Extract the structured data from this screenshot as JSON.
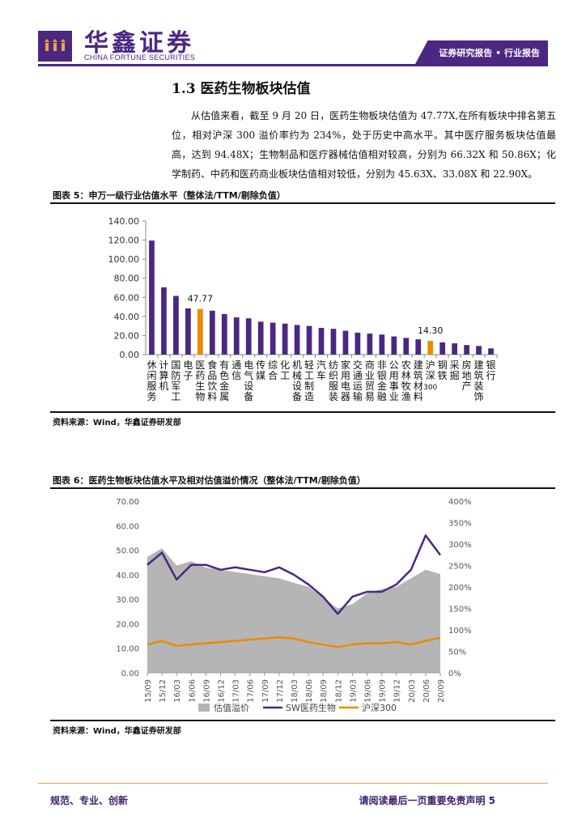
{
  "header": {
    "company_cn": "华鑫证券",
    "company_en": "CHINA FORTUNE SECURITIES",
    "report_tag": "证券研究报告 • 行业报告"
  },
  "section": {
    "title": "1.3 医药生物板块估值",
    "paragraph": "从估值来看，截至 9 月 20 日，医药生物板块估值为 47.77X,在所有板块中排名第五位，相对沪深 300 溢价率约为 234%，处于历史中高水平。其中医疗服务板块估值最高，达到 94.48X；生物制品和医疗器械估值相对较高，分别为 66.32X 和 50.86X；化学制药、中药和医药商业板块估值相对较低，分别为 45.63X、33.08X 和 22.90X。"
  },
  "figure5": {
    "title": "图表 5：申万一级行业估值水平（整体法/TTM/剔除负值）",
    "source": "资料来源：Wind，华鑫证券研发部"
  },
  "figure6": {
    "title": "图表 6：医药生物板块估值水平及相对估值溢价情况（整体法/TTM/剔除负值）",
    "source": "资料来源：Wind，华鑫证券研发部"
  },
  "footer": {
    "left": "规范、专业、创新",
    "right": "请阅读最后一页重要免责声明 5"
  },
  "colors": {
    "brand": "#4b2782",
    "highlight": "#ed8b00",
    "premium_area": "#b5b5b5"
  },
  "chart_data": [
    {
      "type": "bar",
      "categories": [
        "休闲服务",
        "计算机",
        "国防军工",
        "电子",
        "医药生物",
        "食品饮料",
        "有色金属",
        "通信",
        "电气设备",
        "传媒",
        "综合",
        "化工",
        "机械设备",
        "轻工制造",
        "汽车",
        "纺织服装",
        "家用电器",
        "交通运输",
        "商业贸易",
        "非银金融",
        "公用事业",
        "农林牧渔",
        "建筑材料",
        "沪深300",
        "钢铁",
        "采掘",
        "房地产",
        "建筑装饰",
        "银行"
      ],
      "category_lines": [
        [
          "休",
          "闲",
          "服",
          "务"
        ],
        [
          "计",
          "算",
          "机"
        ],
        [
          "国",
          "防",
          "军",
          "工"
        ],
        [
          "电",
          "子"
        ],
        [
          "医",
          "药",
          "生",
          "物"
        ],
        [
          "食",
          "品",
          "饮",
          "料"
        ],
        [
          "有",
          "色",
          "金",
          "属"
        ],
        [
          "通",
          "信"
        ],
        [
          "电",
          "气",
          "设",
          "备"
        ],
        [
          "传",
          "媒"
        ],
        [
          "综",
          "合"
        ],
        [
          "化",
          "工"
        ],
        [
          "机",
          "械",
          "设",
          "备"
        ],
        [
          "轻",
          "工",
          "制",
          "造"
        ],
        [
          "汽",
          "车"
        ],
        [
          "纺",
          "织",
          "服",
          "装"
        ],
        [
          "家",
          "用",
          "电",
          "器"
        ],
        [
          "交",
          "通",
          "运",
          "输"
        ],
        [
          "商",
          "业",
          "贸",
          "易"
        ],
        [
          "非",
          "银",
          "金",
          "融"
        ],
        [
          "公",
          "用",
          "事",
          "业"
        ],
        [
          "农",
          "林",
          "牧",
          "渔"
        ],
        [
          "建",
          "筑",
          "材",
          "料"
        ],
        [
          "沪",
          "深",
          "300"
        ],
        [
          "钢",
          "铁"
        ],
        [
          "采",
          "掘"
        ],
        [
          "房",
          "地",
          "产"
        ],
        [
          "建",
          "筑",
          "装",
          "饰"
        ],
        [
          "银",
          "行"
        ]
      ],
      "values": [
        119.5,
        70.5,
        61.5,
        48.5,
        47.77,
        46.0,
        42.5,
        39.0,
        38.0,
        34.5,
        33.5,
        32.5,
        31.0,
        30.0,
        28.0,
        27.0,
        25.0,
        23.0,
        22.0,
        21.0,
        19.0,
        17.5,
        16.0,
        14.3,
        12.8,
        11.8,
        10.0,
        9.0,
        6.5
      ],
      "highlight_indices": [
        4,
        23
      ],
      "data_labels": [
        {
          "index": 4,
          "text": "47.77"
        },
        {
          "index": 23,
          "text": "14.30"
        }
      ],
      "yticks": [
        "0.00",
        "20.00",
        "40.00",
        "60.00",
        "80.00",
        "100.00",
        "120.00",
        "140.00"
      ],
      "ylim": [
        0,
        140
      ],
      "colors": {
        "bar": "#4b2782",
        "highlight": "#ed8b00"
      }
    },
    {
      "type": "line",
      "x_ticks": [
        "15/09",
        "15/12",
        "16/03",
        "16/06",
        "16/09",
        "16/12",
        "17/03",
        "17/06",
        "17/09",
        "17/12",
        "18/03",
        "18/06",
        "18/09",
        "18/12",
        "19/03",
        "19/06",
        "19/09",
        "19/12",
        "20/03",
        "20/06",
        "20/09"
      ],
      "left_yticks": [
        "0.00",
        "10.00",
        "20.00",
        "30.00",
        "40.00",
        "50.00",
        "60.00",
        "70.00"
      ],
      "right_yticks": [
        "0%",
        "50%",
        "100%",
        "150%",
        "200%",
        "250%",
        "300%",
        "350%",
        "400%"
      ],
      "ylim_left": [
        0,
        70
      ],
      "ylim_right": [
        0,
        400
      ],
      "series": [
        {
          "name": "估值溢价",
          "axis": "right",
          "kind": "area",
          "color": "#b5b5b5",
          "values": [
            270,
            290,
            250,
            260,
            245,
            240,
            235,
            230,
            225,
            220,
            210,
            200,
            175,
            150,
            160,
            185,
            195,
            200,
            220,
            240,
            230
          ]
        },
        {
          "name": "SW医药生物",
          "axis": "left",
          "kind": "line",
          "color": "#4b2782",
          "values": [
            44,
            49,
            38,
            44,
            44,
            42,
            43,
            42,
            41,
            43,
            40,
            36,
            31,
            24,
            31,
            33,
            33,
            36,
            42,
            56,
            48
          ]
        },
        {
          "name": "沪深300",
          "axis": "left",
          "kind": "line",
          "color": "#ed8b00",
          "values": [
            11.5,
            13.0,
            11.0,
            11.5,
            12.0,
            12.5,
            13.0,
            13.5,
            14.0,
            14.5,
            14.0,
            12.5,
            11.5,
            10.5,
            11.5,
            12.0,
            12.0,
            12.5,
            11.5,
            13.0,
            14.3
          ]
        }
      ]
    }
  ]
}
